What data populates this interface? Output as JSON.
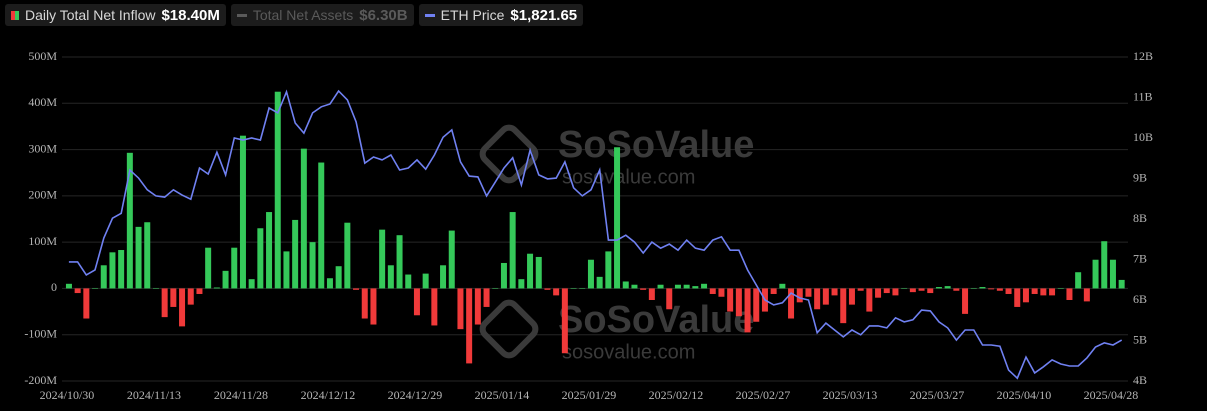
{
  "chart_data": {
    "type": "bar_line",
    "legend": [
      {
        "name": "Daily Total Net Inflow",
        "label": "$18.40M",
        "color": "#35c95a",
        "active": true
      },
      {
        "name": "Total Net Assets",
        "label": "$6.30B",
        "color": "#5a5a5a",
        "active": false
      },
      {
        "name": "ETH Price",
        "label": "$1,821.65",
        "color": "#7081f2",
        "active": true
      }
    ],
    "watermark": {
      "brand": "SoSoValue",
      "url": "sosovalue.com"
    },
    "categories": [
      "2024/10/30",
      null,
      null,
      null,
      null,
      null,
      null,
      null,
      null,
      null,
      "2024/11/13",
      null,
      null,
      null,
      null,
      null,
      null,
      null,
      null,
      null,
      "2024/11/28",
      null,
      null,
      null,
      null,
      null,
      null,
      null,
      null,
      null,
      "2024/12/12",
      null,
      null,
      null,
      null,
      null,
      null,
      null,
      null,
      null,
      "2024/12/29",
      null,
      null,
      null,
      null,
      null,
      null,
      null,
      null,
      null,
      "2025/01/14",
      null,
      null,
      null,
      null,
      null,
      null,
      null,
      null,
      null,
      "2025/01/29",
      null,
      null,
      null,
      null,
      null,
      null,
      null,
      null,
      null,
      "2025/02/12",
      null,
      null,
      null,
      null,
      null,
      null,
      null,
      null,
      null,
      "2025/02/27",
      null,
      null,
      null,
      null,
      null,
      null,
      null,
      null,
      null,
      "2025/03/13",
      null,
      null,
      null,
      null,
      null,
      null,
      null,
      null,
      null,
      "2025/03/27",
      null,
      null,
      null,
      null,
      null,
      null,
      null,
      null,
      null,
      "2025/04/10",
      null,
      null,
      null,
      null,
      null,
      null,
      null,
      null,
      null,
      "2025/04/28",
      null
    ],
    "series": [
      {
        "name": "Daily Total Net Inflow",
        "type": "bar",
        "color": "#35c95a",
        "negative_color": "#f03a3a",
        "values": [
          10,
          -10,
          -65,
          0,
          50,
          78,
          83,
          293,
          133,
          143,
          0,
          -62,
          -40,
          -82,
          -35,
          -12,
          88,
          2,
          38,
          88,
          330,
          20,
          130,
          165,
          425,
          80,
          148,
          302,
          100,
          272,
          22,
          48,
          142,
          -3,
          -65,
          -78,
          127,
          50,
          115,
          30,
          -58,
          32,
          -80,
          50,
          125,
          -88,
          -162,
          -78,
          -40,
          0,
          55,
          165,
          20,
          75,
          68,
          -3,
          -15,
          -140,
          0,
          0,
          62,
          25,
          80,
          305,
          15,
          8,
          -3,
          -25,
          8,
          -45,
          8,
          8,
          5,
          10,
          -12,
          -18,
          -50,
          -60,
          -95,
          -72,
          -50,
          -12,
          10,
          -65,
          -30,
          -18,
          -45,
          -35,
          -15,
          -75,
          -35,
          -5,
          -50,
          -20,
          -10,
          -15,
          0,
          -8,
          -5,
          -10,
          3,
          5,
          -5,
          -55,
          0,
          3,
          -2,
          -5,
          -12,
          -40,
          -30,
          -12,
          -15,
          -15,
          0,
          -25,
          35,
          -28,
          62,
          102,
          62,
          18.4
        ]
      },
      {
        "name": "ETH Price",
        "type": "line",
        "axis": "y2",
        "color": "#7081f2",
        "values": [
          6.94,
          6.94,
          6.62,
          6.74,
          7.53,
          8.02,
          8.14,
          9.21,
          9.01,
          8.72,
          8.57,
          8.54,
          8.72,
          8.59,
          8.49,
          9.26,
          9.11,
          9.65,
          9.09,
          10.0,
          9.95,
          10.0,
          9.95,
          10.74,
          10.62,
          11.14,
          10.37,
          10.12,
          10.62,
          10.77,
          10.84,
          11.16,
          10.94,
          10.4,
          9.38,
          9.53,
          9.46,
          9.58,
          9.21,
          9.26,
          9.46,
          9.23,
          9.58,
          10.02,
          10.2,
          9.41,
          9.06,
          9.04,
          8.57,
          8.91,
          9.26,
          9.51,
          8.84,
          9.7,
          9.09,
          8.99,
          9.01,
          9.41,
          8.77,
          8.57,
          8.72,
          9.21,
          7.48,
          7.48,
          7.6,
          7.43,
          7.16,
          7.43,
          7.28,
          7.38,
          7.23,
          7.48,
          7.28,
          7.23,
          7.48,
          7.56,
          7.23,
          7.23,
          6.74,
          6.37,
          6.0,
          5.88,
          5.93,
          6.17,
          6.05,
          6.0,
          5.19,
          5.43,
          5.26,
          5.09,
          5.26,
          5.14,
          5.36,
          5.36,
          5.31,
          5.56,
          5.46,
          5.51,
          5.75,
          5.73,
          5.46,
          5.31,
          5.01,
          5.26,
          5.26,
          4.89,
          4.89,
          4.86,
          4.27,
          4.07,
          4.59,
          4.2,
          4.35,
          4.52,
          4.42,
          4.37,
          4.37,
          4.57,
          4.84,
          4.94,
          4.89,
          5.01
        ]
      }
    ],
    "ylim": [
      -200,
      500
    ],
    "yticks": [
      {
        "value": -200,
        "label": "-200M"
      },
      {
        "value": -100,
        "label": "-100M"
      },
      0,
      {
        "value": 100,
        "label": "100M"
      },
      {
        "value": 200,
        "label": "200M"
      },
      {
        "value": 300,
        "label": "300M"
      },
      {
        "value": 400,
        "label": "400M"
      },
      {
        "value": 500,
        "label": "500M"
      }
    ],
    "y2lim": [
      4,
      12
    ],
    "y2ticks": [
      {
        "value": 4,
        "label": "4B"
      },
      {
        "value": 5,
        "label": "5B"
      },
      {
        "value": 6,
        "label": "6B"
      },
      {
        "value": 7,
        "label": "7B"
      },
      {
        "value": 8,
        "label": "8B"
      },
      {
        "value": 9,
        "label": "9B"
      },
      {
        "value": 10,
        "label": "10B"
      },
      {
        "value": 11,
        "label": "11B"
      },
      {
        "value": 12,
        "label": "12B"
      }
    ],
    "grid": true
  }
}
